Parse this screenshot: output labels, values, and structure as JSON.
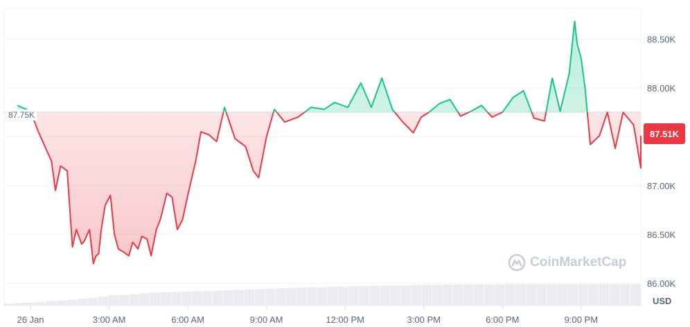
{
  "watermark": {
    "text": "CoinMarketCap"
  },
  "currency_label": "USD",
  "reference_label": "87.75K",
  "current_label": "87.51K",
  "colors": {
    "up": "#16c784",
    "down": "#ea3943",
    "grid": "#eff2f5",
    "tick": "#58667e",
    "volume": "#e6e9ee"
  },
  "chart_data": {
    "type": "area",
    "title": "",
    "xlabel": "",
    "ylabel": "",
    "baseline": 87750,
    "current": 87510,
    "x_ticks": [
      "26 Jan",
      "3:00 AM",
      "6:00 AM",
      "9:00 AM",
      "12:00 PM",
      "3:00 PM",
      "6:00 PM",
      "9:00 PM"
    ],
    "y_ticks": [
      "88.50K",
      "88.00K",
      "87.50K",
      "87.00K",
      "86.50K",
      "86.00K"
    ],
    "y_tick_values": [
      88500,
      88000,
      87500,
      87000,
      86500,
      86000
    ],
    "ylim": [
      85800,
      88800
    ],
    "x_hours": [
      -0.5,
      0.0,
      0.3,
      0.8,
      0.95,
      1.15,
      1.4,
      1.6,
      1.75,
      1.95,
      2.05,
      2.25,
      2.4,
      2.5,
      2.6,
      2.7,
      2.85,
      3.05,
      3.2,
      3.35,
      3.55,
      3.75,
      3.9,
      4.1,
      4.25,
      4.45,
      4.6,
      4.8,
      4.95,
      5.2,
      5.4,
      5.6,
      5.8,
      6.0,
      6.3,
      6.5,
      6.8,
      7.1,
      7.4,
      7.8,
      8.2,
      8.5,
      8.7,
      9.0,
      9.3,
      9.7,
      10.2,
      10.7,
      11.2,
      11.6,
      12.1,
      12.6,
      13.0,
      13.4,
      13.8,
      14.2,
      14.6,
      14.9,
      15.2,
      15.6,
      16.0,
      16.4,
      16.8,
      17.2,
      17.6,
      18.0,
      18.4,
      18.8,
      19.2,
      19.6,
      19.9,
      20.2,
      20.55,
      20.75,
      20.85,
      21.0,
      21.15,
      21.35,
      21.7,
      22.0,
      22.3,
      22.6,
      23.0,
      23.3,
      23.7,
      24.1,
      24.5
    ],
    "x_labels": [
      "",
      "26 Jan",
      "",
      "",
      "",
      "",
      "",
      "",
      "",
      "",
      "",
      "",
      "",
      "",
      "",
      "",
      "",
      "",
      "",
      "",
      "",
      "",
      "",
      "",
      "",
      "",
      "",
      "",
      "",
      "",
      "",
      "",
      "",
      "",
      "",
      "",
      "",
      "",
      "",
      "",
      "",
      "",
      "",
      "",
      "",
      "",
      "",
      "",
      "",
      "",
      "",
      "",
      "",
      "",
      "",
      "",
      "",
      "",
      "",
      "",
      "",
      "",
      "",
      "",
      "",
      "",
      "",
      "",
      "",
      "",
      "",
      "",
      "",
      "",
      "",
      "",
      "",
      "",
      "",
      "",
      "",
      "",
      "",
      "",
      "",
      "",
      ""
    ],
    "price": [
      87820,
      87760,
      87550,
      87250,
      86950,
      87200,
      87150,
      86370,
      86550,
      86400,
      86430,
      86550,
      86200,
      86280,
      86300,
      86550,
      86800,
      86900,
      86500,
      86350,
      86320,
      86280,
      86420,
      86350,
      86480,
      86450,
      86280,
      86550,
      86650,
      86920,
      86880,
      86550,
      86650,
      86900,
      87250,
      87550,
      87520,
      87450,
      87800,
      87480,
      87400,
      87150,
      87080,
      87500,
      87780,
      87650,
      87700,
      87800,
      87780,
      87850,
      87800,
      88050,
      87800,
      88100,
      87780,
      87650,
      87540,
      87700,
      87750,
      87840,
      87880,
      87710,
      87760,
      87820,
      87700,
      87750,
      87900,
      87970,
      87690,
      87660,
      88100,
      87760,
      88150,
      88680,
      88450,
      88300,
      88000,
      87420,
      87510,
      87750,
      87380,
      87750,
      87620,
      87180,
      87330,
      87510,
      87510
    ],
    "volume_level": [
      0.05,
      0.07,
      0.08,
      0.09,
      0.12,
      0.13,
      0.15,
      0.18,
      0.2,
      0.23,
      0.27,
      0.28,
      0.3,
      0.32,
      0.34,
      0.35,
      0.36,
      0.37,
      0.38,
      0.38,
      0.39,
      0.4,
      0.41,
      0.42,
      0.43,
      0.44,
      0.45,
      0.46,
      0.47,
      0.48,
      0.48,
      0.49,
      0.5,
      0.51,
      0.51,
      0.52,
      0.52,
      0.53,
      0.53,
      0.54,
      0.54,
      0.54,
      0.55,
      0.55,
      0.55,
      0.55,
      0.55,
      0.55,
      0.56,
      0.56,
      0.56,
      0.56,
      0.56,
      0.56,
      0.56,
      0.56,
      0.56,
      0.56,
      0.56,
      0.56,
      0.56
    ]
  }
}
